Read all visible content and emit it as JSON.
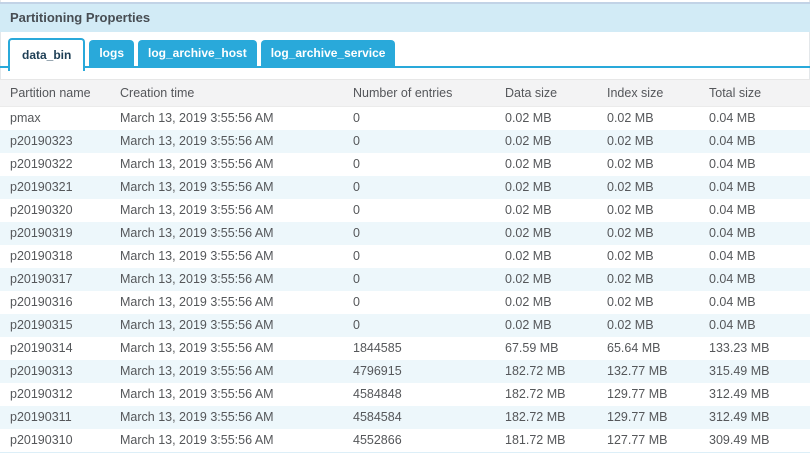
{
  "panel": {
    "title": "Partitioning Properties"
  },
  "tabs": [
    {
      "label": "data_bin",
      "active": true
    },
    {
      "label": "logs",
      "active": false
    },
    {
      "label": "log_archive_host",
      "active": false
    },
    {
      "label": "log_archive_service",
      "active": false
    }
  ],
  "table": {
    "columns": [
      "Partition name",
      "Creation time",
      "Number of entries",
      "Data size",
      "Index size",
      "Total size"
    ],
    "rows": [
      [
        "pmax",
        "March 13, 2019 3:55:56 AM",
        "0",
        "0.02 MB",
        "0.02 MB",
        "0.04 MB"
      ],
      [
        "p20190323",
        "March 13, 2019 3:55:56 AM",
        "0",
        "0.02 MB",
        "0.02 MB",
        "0.04 MB"
      ],
      [
        "p20190322",
        "March 13, 2019 3:55:56 AM",
        "0",
        "0.02 MB",
        "0.02 MB",
        "0.04 MB"
      ],
      [
        "p20190321",
        "March 13, 2019 3:55:56 AM",
        "0",
        "0.02 MB",
        "0.02 MB",
        "0.04 MB"
      ],
      [
        "p20190320",
        "March 13, 2019 3:55:56 AM",
        "0",
        "0.02 MB",
        "0.02 MB",
        "0.04 MB"
      ],
      [
        "p20190319",
        "March 13, 2019 3:55:56 AM",
        "0",
        "0.02 MB",
        "0.02 MB",
        "0.04 MB"
      ],
      [
        "p20190318",
        "March 13, 2019 3:55:56 AM",
        "0",
        "0.02 MB",
        "0.02 MB",
        "0.04 MB"
      ],
      [
        "p20190317",
        "March 13, 2019 3:55:56 AM",
        "0",
        "0.02 MB",
        "0.02 MB",
        "0.04 MB"
      ],
      [
        "p20190316",
        "March 13, 2019 3:55:56 AM",
        "0",
        "0.02 MB",
        "0.02 MB",
        "0.04 MB"
      ],
      [
        "p20190315",
        "March 13, 2019 3:55:56 AM",
        "0",
        "0.02 MB",
        "0.02 MB",
        "0.04 MB"
      ],
      [
        "p20190314",
        "March 13, 2019 3:55:56 AM",
        "1844585",
        "67.59 MB",
        "65.64 MB",
        "133.23 MB"
      ],
      [
        "p20190313",
        "March 13, 2019 3:55:56 AM",
        "4796915",
        "182.72 MB",
        "132.77 MB",
        "315.49 MB"
      ],
      [
        "p20190312",
        "March 13, 2019 3:55:56 AM",
        "4584848",
        "182.72 MB",
        "129.77 MB",
        "312.49 MB"
      ],
      [
        "p20190311",
        "March 13, 2019 3:55:56 AM",
        "4584584",
        "182.72 MB",
        "129.77 MB",
        "312.49 MB"
      ],
      [
        "p20190310",
        "March 13, 2019 3:55:56 AM",
        "4552866",
        "181.72 MB",
        "127.77 MB",
        "309.49 MB"
      ]
    ]
  },
  "colors": {
    "accent": "#29a9da",
    "title_bar_bg": "#d2ebf6",
    "title_bar_border": "#c2d3e6",
    "row_alt_bg": "#edf7fb",
    "header_bg": "#f3f3f4",
    "active_tab_text": "#1d3e55",
    "body_text": "#55575a"
  }
}
